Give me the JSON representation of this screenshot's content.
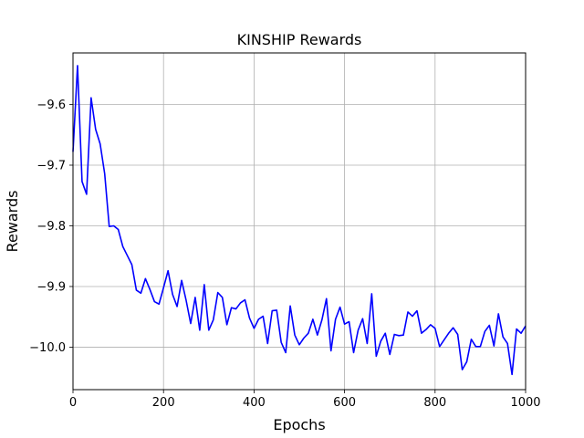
{
  "chart_data": {
    "type": "line",
    "title": "KINSHIP Rewards",
    "xlabel": "Epochs",
    "ylabel": "Rewards",
    "xlim": [
      0,
      1000
    ],
    "ylim": [
      -10.07,
      -9.515
    ],
    "xticks": [
      0,
      200,
      400,
      600,
      800,
      1000
    ],
    "yticks": [
      -10.0,
      -9.9,
      -9.8,
      -9.7,
      -9.6
    ],
    "xtick_labels": [
      "0",
      "200",
      "400",
      "600",
      "800",
      "1000"
    ],
    "ytick_labels": [
      "−10.0",
      "−9.9",
      "−9.8",
      "−9.7",
      "−9.6"
    ],
    "grid": true,
    "line_color": "#0000ff",
    "series": [
      {
        "x": [
          0,
          10,
          20,
          30,
          40,
          50,
          60,
          70,
          80,
          90,
          100,
          110,
          120,
          130,
          140,
          150,
          160,
          170,
          180,
          190,
          200,
          210,
          220,
          230,
          240,
          250,
          260,
          270,
          280,
          290,
          300,
          310,
          320,
          330,
          340,
          350,
          360,
          370,
          380,
          390,
          400,
          410,
          420,
          430,
          440,
          450,
          460,
          470,
          480,
          490,
          500,
          510,
          520,
          530,
          540,
          550,
          560,
          570,
          580,
          590,
          600,
          610,
          620,
          630,
          640,
          650,
          660,
          670,
          680,
          690,
          700,
          710,
          720,
          730,
          740,
          750,
          760,
          770,
          780,
          790,
          800,
          810,
          820,
          830,
          840,
          850,
          860,
          870,
          880,
          890,
          900,
          910,
          920,
          930,
          940,
          950,
          960,
          970,
          980,
          990,
          1000
        ],
        "values": [
          -9.678,
          -9.536,
          -9.727,
          -9.748,
          -9.589,
          -9.641,
          -9.665,
          -9.714,
          -9.801,
          -9.8,
          -9.806,
          -9.834,
          -9.849,
          -9.864,
          -9.906,
          -9.911,
          -9.887,
          -9.905,
          -9.925,
          -9.929,
          -9.902,
          -9.874,
          -9.913,
          -9.933,
          -9.89,
          -9.923,
          -9.961,
          -9.918,
          -9.972,
          -9.897,
          -9.972,
          -9.955,
          -9.91,
          -9.918,
          -9.963,
          -9.935,
          -9.937,
          -9.927,
          -9.922,
          -9.952,
          -9.969,
          -9.954,
          -9.949,
          -9.994,
          -9.94,
          -9.939,
          -9.992,
          -10.009,
          -9.932,
          -9.98,
          -9.996,
          -9.985,
          -9.977,
          -9.954,
          -9.98,
          -9.955,
          -9.92,
          -10.006,
          -9.954,
          -9.934,
          -9.962,
          -9.958,
          -10.009,
          -9.972,
          -9.953,
          -9.994,
          -9.912,
          -10.015,
          -9.99,
          -9.977,
          -10.012,
          -9.979,
          -9.981,
          -9.98,
          -9.942,
          -9.949,
          -9.94,
          -9.977,
          -9.971,
          -9.963,
          -9.969,
          -9.999,
          -9.988,
          -9.977,
          -9.968,
          -9.979,
          -10.037,
          -10.024,
          -9.987,
          -9.999,
          -9.999,
          -9.974,
          -9.964,
          -9.998,
          -9.945,
          -9.983,
          -9.994,
          -10.045,
          -9.97,
          -9.977,
          -9.965
        ]
      }
    ]
  }
}
